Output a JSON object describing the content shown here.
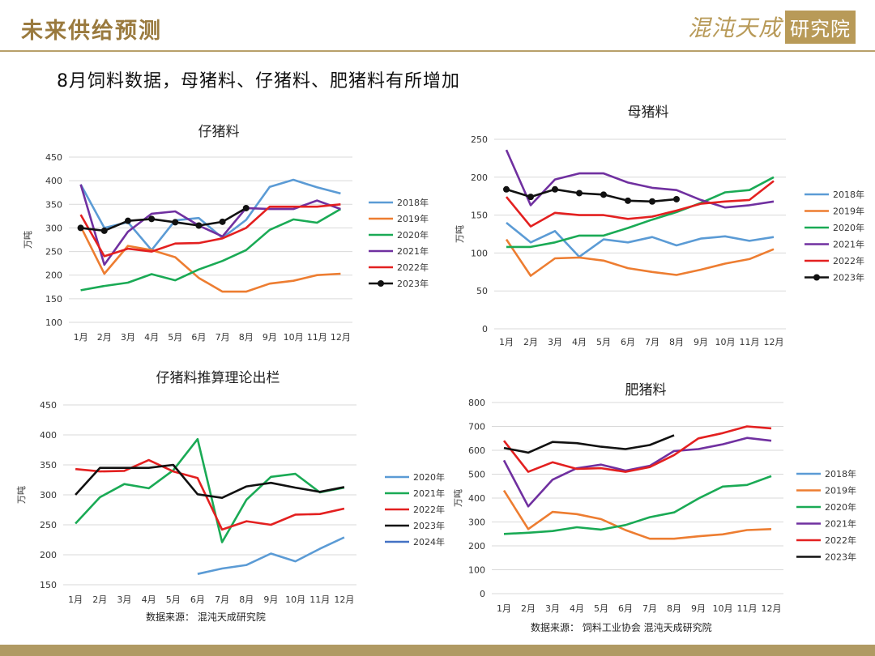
{
  "header": {
    "title": "未来供给预测",
    "logo_text": "混沌天成",
    "logo_box": "研究院"
  },
  "subtitle": "8月饲料数据，母猪料、仔猪料、肥猪料有所增加",
  "colors": {
    "accent": "#b09a63"
  },
  "chart_data": [
    {
      "type": "line",
      "title": "仔猪料",
      "ylabel": "万吨",
      "ylim": [
        100,
        450
      ],
      "yticks": [
        100,
        150,
        200,
        250,
        300,
        350,
        400,
        450
      ],
      "categories": [
        "1月",
        "2月",
        "3月",
        "4月",
        "5月",
        "6月",
        "7月",
        "8月",
        "9月",
        "10月",
        "11月",
        "12月"
      ],
      "series": [
        {
          "name": "2018年",
          "color": "#5b9bd5",
          "values": [
            392,
            300,
            312,
            253,
            316,
            321,
            279,
            317,
            387,
            402,
            386,
            373
          ]
        },
        {
          "name": "2019年",
          "color": "#ed7d31",
          "values": [
            303,
            203,
            262,
            253,
            238,
            194,
            165,
            165,
            182,
            188,
            200,
            203
          ]
        },
        {
          "name": "2020年",
          "color": "#1aaa55",
          "values": [
            168,
            177,
            184,
            202,
            189,
            212,
            230,
            253,
            296,
            318,
            311,
            340
          ]
        },
        {
          "name": "2021年",
          "color": "#7030a0",
          "values": [
            392,
            222,
            292,
            330,
            335,
            305,
            282,
            342,
            340,
            340,
            358,
            340
          ]
        },
        {
          "name": "2022年",
          "color": "#e32020",
          "values": [
            328,
            240,
            256,
            250,
            267,
            268,
            278,
            300,
            345,
            345,
            345,
            350
          ]
        },
        {
          "name": "2023年",
          "color": "#111111",
          "marker": true,
          "values": [
            300,
            294,
            315,
            319,
            312,
            305,
            313,
            342,
            null,
            null,
            null,
            null
          ]
        }
      ]
    },
    {
      "type": "line",
      "title": "母猪料",
      "ylabel": "万吨",
      "ylim": [
        0,
        250
      ],
      "yticks": [
        0,
        50,
        100,
        150,
        200,
        250
      ],
      "categories": [
        "1月",
        "2月",
        "3月",
        "4月",
        "5月",
        "6月",
        "7月",
        "8月",
        "9月",
        "10月",
        "11月",
        "12月"
      ],
      "series": [
        {
          "name": "2018年",
          "color": "#5b9bd5",
          "values": [
            140,
            114,
            129,
            95,
            118,
            114,
            121,
            110,
            119,
            122,
            116,
            121
          ]
        },
        {
          "name": "2019年",
          "color": "#ed7d31",
          "values": [
            118,
            70,
            93,
            94,
            90,
            80,
            75,
            71,
            78,
            86,
            92,
            105
          ]
        },
        {
          "name": "2020年",
          "color": "#1aaa55",
          "values": [
            108,
            108,
            114,
            123,
            123,
            133,
            144,
            154,
            166,
            180,
            183,
            200
          ]
        },
        {
          "name": "2021年",
          "color": "#7030a0",
          "values": [
            236,
            163,
            197,
            205,
            205,
            193,
            186,
            183,
            170,
            160,
            163,
            168
          ]
        },
        {
          "name": "2022年",
          "color": "#e32020",
          "values": [
            174,
            135,
            153,
            150,
            150,
            145,
            148,
            156,
            165,
            168,
            170,
            195
          ]
        },
        {
          "name": "2023年",
          "color": "#111111",
          "marker": true,
          "values": [
            184,
            174,
            184,
            179,
            177,
            169,
            168,
            171,
            null,
            null,
            null,
            null
          ]
        }
      ]
    },
    {
      "type": "line",
      "title": "仔猪料推算理论出栏",
      "ylabel": "万吨",
      "ylim": [
        150,
        450
      ],
      "yticks": [
        150,
        200,
        250,
        300,
        350,
        400,
        450
      ],
      "categories": [
        "1月",
        "2月",
        "3月",
        "4月",
        "5月",
        "6月",
        "7月",
        "8月",
        "9月",
        "10月",
        "11月",
        "12月"
      ],
      "source": "数据来源： 混沌天成研究院",
      "series": [
        {
          "name": "2020年",
          "color": "#5b9bd5",
          "values": [
            null,
            null,
            null,
            null,
            null,
            168,
            177,
            183,
            202,
            189,
            210,
            229
          ]
        },
        {
          "name": "2021年",
          "color": "#1aaa55",
          "values": [
            252,
            296,
            318,
            311,
            341,
            393,
            221,
            292,
            330,
            335,
            304,
            312
          ]
        },
        {
          "name": "2022年",
          "color": "#e32020",
          "values": [
            343,
            339,
            340,
            358,
            339,
            328,
            242,
            256,
            250,
            267,
            268,
            277
          ]
        },
        {
          "name": "2023年",
          "color": "#111111",
          "values": [
            300,
            345,
            345,
            345,
            350,
            301,
            295,
            314,
            320,
            312,
            305,
            313
          ]
        },
        {
          "name": "2024年",
          "color": "#4472c4",
          "values": [
            null,
            null,
            null,
            null,
            null,
            null,
            null,
            null,
            null,
            null,
            null,
            null
          ]
        }
      ]
    },
    {
      "type": "line",
      "title": "肥猪料",
      "ylabel": "万吨",
      "ylim": [
        0,
        800
      ],
      "yticks": [
        0,
        100,
        200,
        300,
        400,
        500,
        600,
        700,
        800
      ],
      "categories": [
        "1月",
        "2月",
        "3月",
        "4月",
        "5月",
        "6月",
        "7月",
        "8月",
        "9月",
        "10月",
        "11月",
        "12月"
      ],
      "source": "数据来源： 饲料工业协会  混沌天成研究院",
      "series": [
        {
          "name": "2018年",
          "color": "#5b9bd5",
          "values": [
            null,
            null,
            null,
            null,
            null,
            null,
            null,
            null,
            null,
            null,
            null,
            null
          ]
        },
        {
          "name": "2019年",
          "color": "#ed7d31",
          "values": [
            432,
            270,
            342,
            333,
            312,
            266,
            230,
            230,
            240,
            248,
            266,
            270
          ]
        },
        {
          "name": "2020年",
          "color": "#1aaa55",
          "values": [
            250,
            255,
            262,
            278,
            268,
            287,
            320,
            340,
            398,
            448,
            455,
            492
          ]
        },
        {
          "name": "2021年",
          "color": "#7030a0",
          "values": [
            558,
            365,
            477,
            525,
            540,
            515,
            535,
            597,
            605,
            625,
            652,
            640
          ]
        },
        {
          "name": "2022年",
          "color": "#e32020",
          "values": [
            640,
            510,
            550,
            522,
            525,
            510,
            530,
            580,
            650,
            672,
            700,
            692
          ]
        },
        {
          "name": "2023年",
          "color": "#111111",
          "values": [
            610,
            590,
            635,
            630,
            615,
            605,
            622,
            663,
            null,
            null,
            null,
            null
          ]
        }
      ]
    }
  ]
}
